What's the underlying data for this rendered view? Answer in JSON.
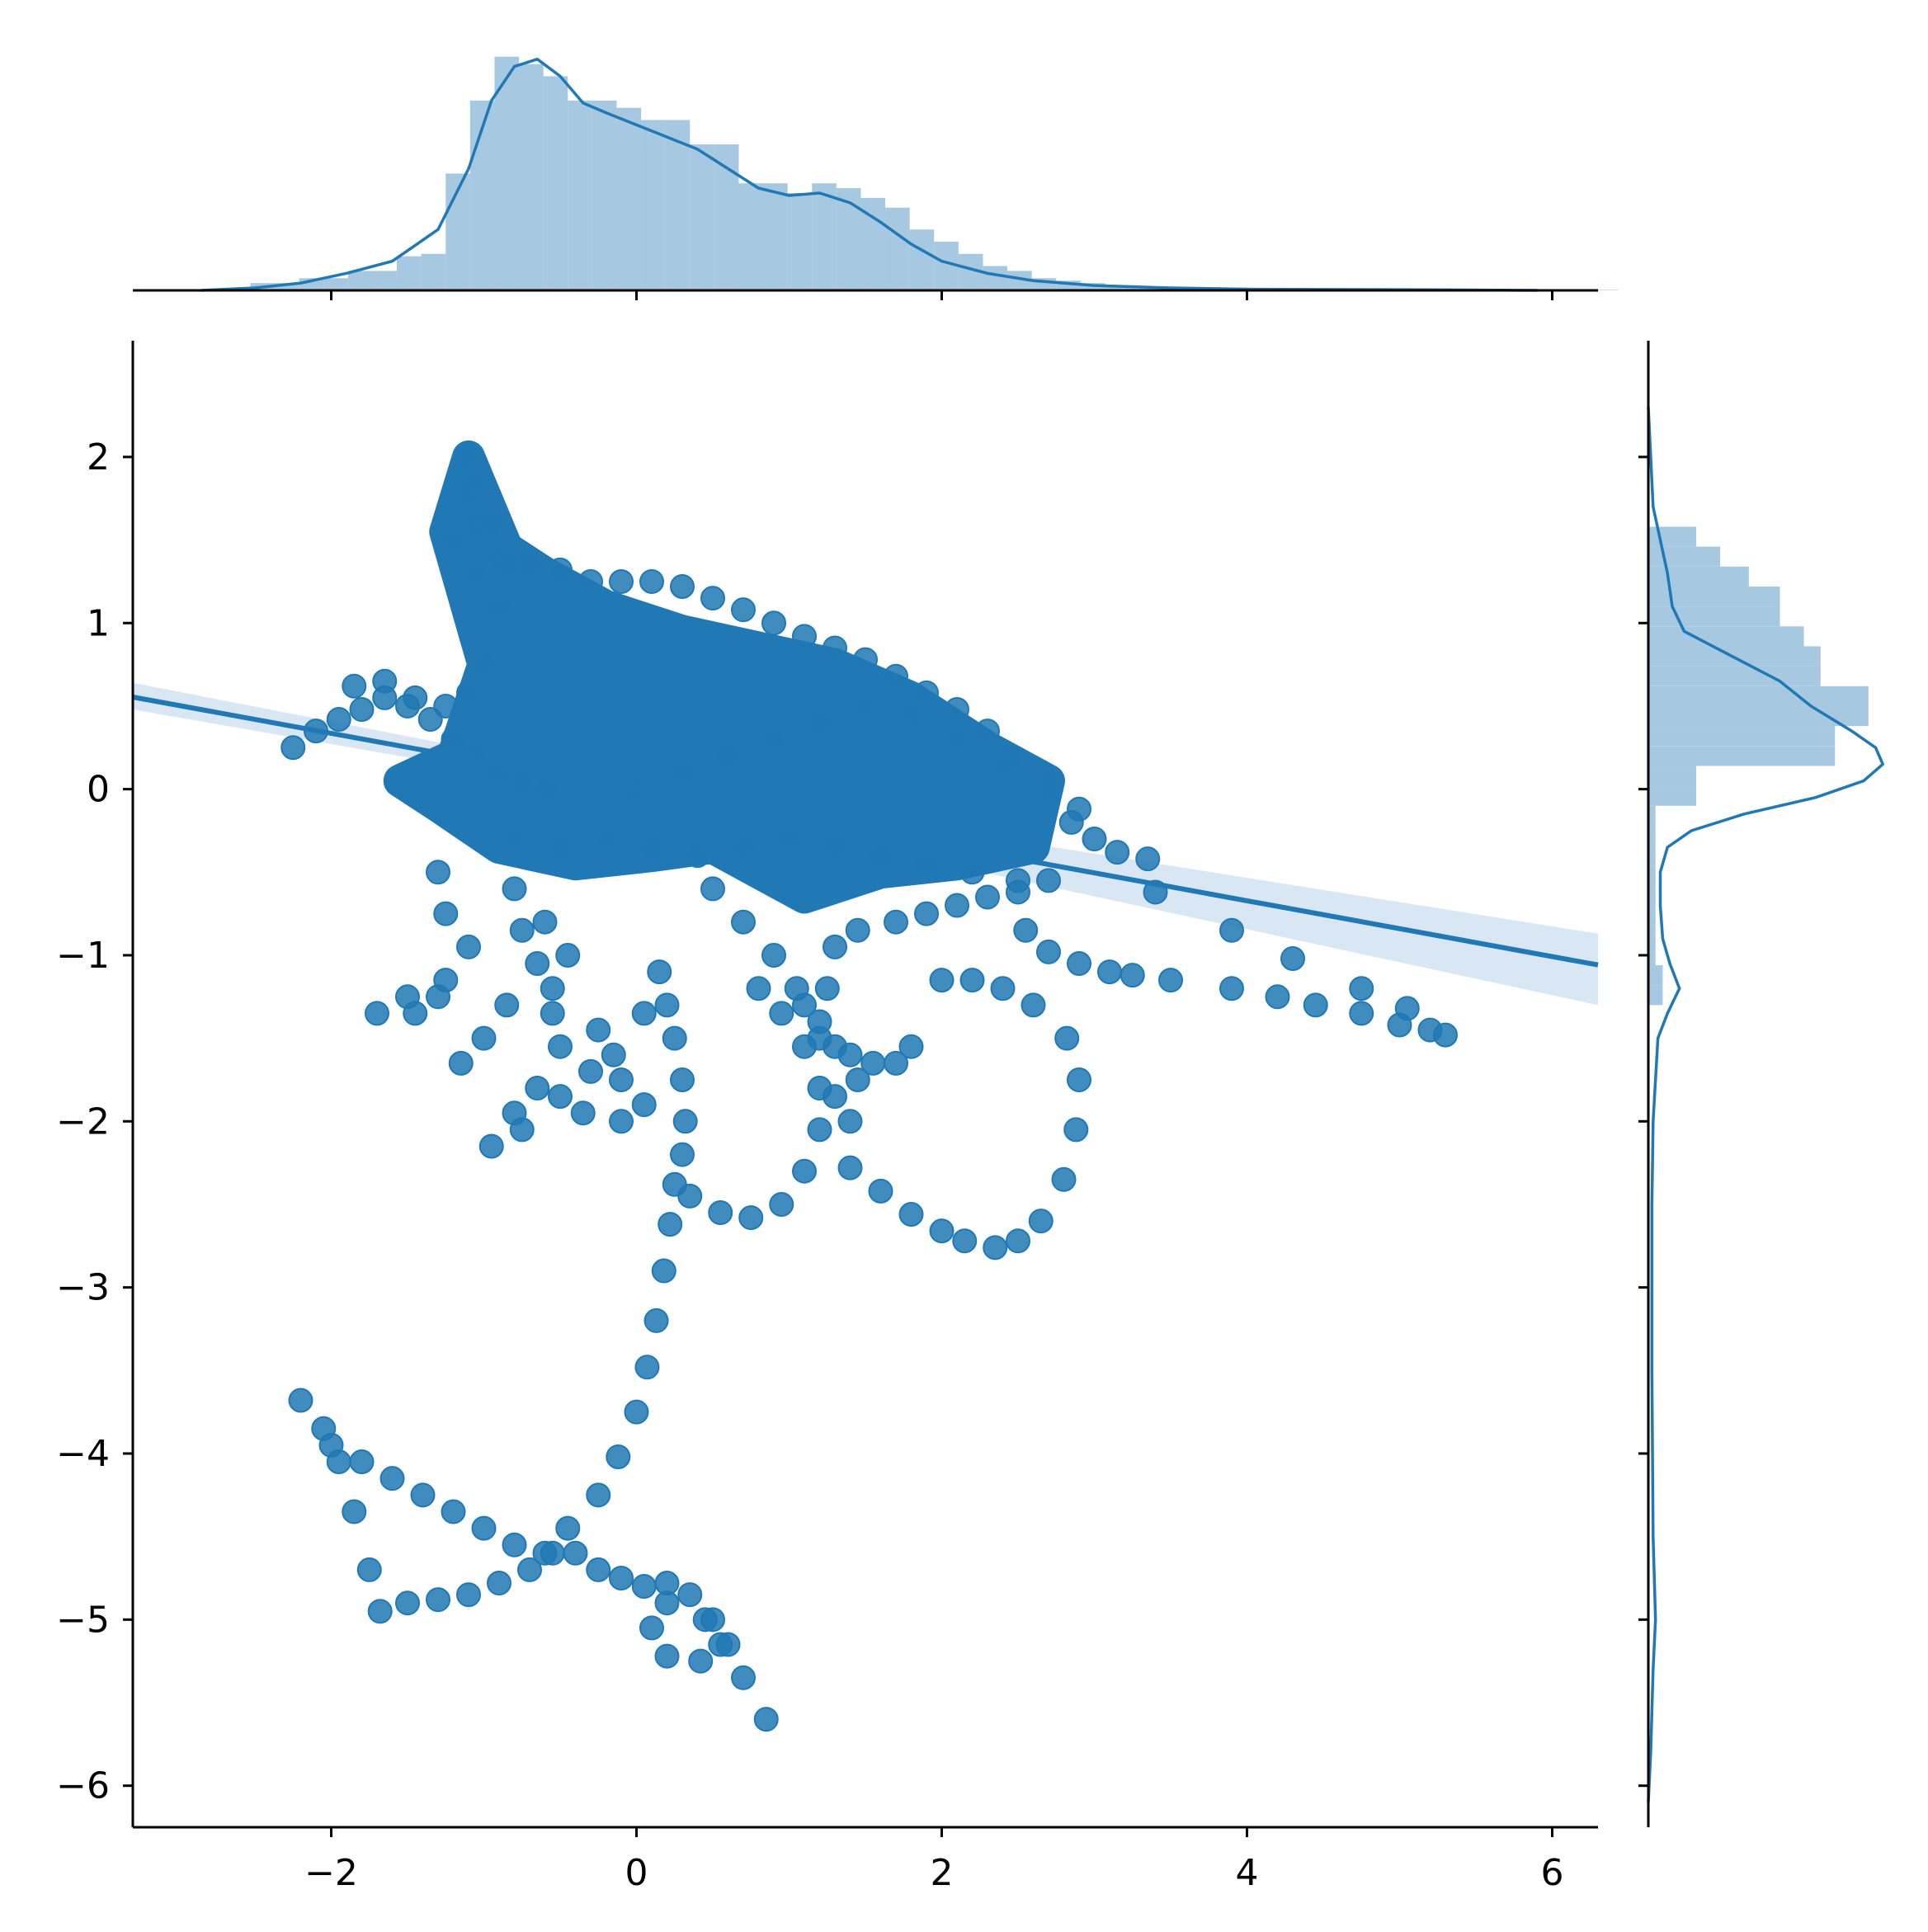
{
  "colors": {
    "main": "#2078b4",
    "hist_fill": "#a6c8e0",
    "band": "#c9dcee",
    "axis": "#000000"
  },
  "chart_data": {
    "type": "scatter",
    "kind": "jointplot with regression line and marginal histograms/kde",
    "title": "",
    "xlabel": "",
    "ylabel": "",
    "xlim": [
      -3.3,
      6.3
    ],
    "ylim": [
      -6.25,
      2.7
    ],
    "x_ticks": [
      "−2",
      "0",
      "2",
      "4",
      "6"
    ],
    "x_tick_values": [
      -2,
      0,
      2,
      4,
      6
    ],
    "y_ticks": [
      "2",
      "1",
      "0",
      "−1",
      "−2",
      "−3",
      "−4",
      "−5",
      "−6"
    ],
    "y_tick_values": [
      2,
      1,
      0,
      -1,
      -2,
      -3,
      -4,
      -5,
      -6
    ],
    "grid": false,
    "regression": {
      "slope": -0.168,
      "intercept": 0.0,
      "band": [
        [
          -3.3,
          0.64,
          0.48
        ],
        [
          0,
          0.05,
          -0.05
        ],
        [
          6.3,
          -0.87,
          -1.3
        ]
      ]
    },
    "trajectory_points": [
      [
        -2.2,
        -3.68
      ],
      [
        -2.05,
        -3.85
      ],
      [
        -1.95,
        -4.05
      ],
      [
        -1.85,
        -4.35
      ],
      [
        -1.75,
        -4.7
      ],
      [
        -1.68,
        -4.95
      ],
      [
        -1.5,
        -4.9
      ],
      [
        -1.3,
        -4.88
      ],
      [
        -1.1,
        -4.85
      ],
      [
        -0.9,
        -4.78
      ],
      [
        -0.7,
        -4.7
      ],
      [
        -0.55,
        -4.6
      ],
      [
        -0.4,
        -4.6
      ],
      [
        -0.25,
        -4.7
      ],
      [
        -0.1,
        -4.75
      ],
      [
        0.05,
        -4.8
      ],
      [
        0.2,
        -4.78
      ],
      [
        0.35,
        -4.85
      ],
      [
        0.5,
        -5.0
      ],
      [
        0.55,
        -5.15
      ],
      [
        0.42,
        -5.25
      ],
      [
        0.2,
        -5.22
      ],
      [
        0.1,
        -5.05
      ],
      [
        0.2,
        -4.9
      ],
      [
        0.45,
        -5.0
      ],
      [
        0.6,
        -5.15
      ],
      [
        0.7,
        -5.35
      ],
      [
        0.85,
        -5.6
      ],
      [
        -2.0,
        -3.95
      ],
      [
        -1.8,
        -4.05
      ],
      [
        -1.6,
        -4.15
      ],
      [
        -1.4,
        -4.25
      ],
      [
        -1.2,
        -4.35
      ],
      [
        -1.0,
        -4.45
      ],
      [
        -0.8,
        -4.55
      ],
      [
        -0.6,
        -4.6
      ],
      [
        -0.45,
        -4.45
      ],
      [
        -0.25,
        -4.25
      ],
      [
        -0.12,
        -4.02
      ],
      [
        0.0,
        -3.75
      ],
      [
        0.07,
        -3.48
      ],
      [
        0.13,
        -3.2
      ],
      [
        0.18,
        -2.9
      ],
      [
        0.22,
        -2.62
      ],
      [
        0.25,
        -2.38
      ],
      [
        0.3,
        -2.2
      ],
      [
        0.32,
        -2.0
      ],
      [
        0.3,
        -1.75
      ],
      [
        0.25,
        -1.5
      ],
      [
        0.2,
        -1.3
      ],
      [
        0.15,
        -1.1
      ],
      [
        0.35,
        -2.45
      ],
      [
        0.55,
        -2.55
      ],
      [
        0.75,
        -2.58
      ],
      [
        0.95,
        -2.5
      ],
      [
        1.1,
        -2.3
      ],
      [
        1.2,
        -2.05
      ],
      [
        1.2,
        -1.8
      ],
      [
        1.1,
        -1.55
      ],
      [
        0.95,
        -1.35
      ],
      [
        0.8,
        -1.2
      ],
      [
        1.4,
        -2.28
      ],
      [
        1.6,
        -2.42
      ],
      [
        1.8,
        -2.56
      ],
      [
        2.0,
        -2.66
      ],
      [
        2.15,
        -2.72
      ],
      [
        2.35,
        -2.76
      ],
      [
        2.5,
        -2.72
      ],
      [
        2.65,
        -2.6
      ],
      [
        2.8,
        -2.35
      ],
      [
        2.88,
        -2.05
      ],
      [
        2.9,
        -1.75
      ],
      [
        2.82,
        -1.5
      ],
      [
        2.6,
        -1.3
      ],
      [
        2.4,
        -1.2
      ],
      [
        2.2,
        -1.15
      ],
      [
        2.0,
        -1.15
      ],
      [
        1.8,
        -1.55
      ],
      [
        1.7,
        -1.65
      ],
      [
        1.55,
        -1.65
      ],
      [
        1.4,
        -1.6
      ],
      [
        1.2,
        -1.4
      ],
      [
        1.05,
        -1.2
      ],
      [
        -1.3,
        -0.5
      ],
      [
        -1.25,
        -0.75
      ],
      [
        -1.1,
        -0.95
      ],
      [
        -1.25,
        -1.15
      ],
      [
        -1.5,
        -1.25
      ],
      [
        -1.7,
        -1.35
      ],
      [
        -1.45,
        -1.35
      ],
      [
        -1.3,
        -1.25
      ],
      [
        -0.8,
        -0.6
      ],
      [
        -0.75,
        -0.85
      ],
      [
        -0.65,
        -1.05
      ],
      [
        -0.85,
        -1.3
      ],
      [
        -1.0,
        -1.5
      ],
      [
        -1.15,
        -1.65
      ],
      [
        -0.55,
        -1.2
      ],
      [
        -0.45,
        -1.0
      ],
      [
        -0.6,
        -0.8
      ],
      [
        -0.65,
        -1.8
      ],
      [
        -0.8,
        -1.95
      ],
      [
        -0.95,
        -2.15
      ],
      [
        -0.75,
        -2.05
      ],
      [
        -0.5,
        -1.85
      ],
      [
        -0.3,
        -1.7
      ],
      [
        -0.1,
        -1.75
      ],
      [
        0.05,
        -1.9
      ],
      [
        -0.1,
        -2.0
      ],
      [
        -0.35,
        -1.95
      ],
      [
        -0.15,
        -1.6
      ],
      [
        0.05,
        -1.35
      ],
      [
        -0.55,
        -1.35
      ],
      [
        -0.5,
        -1.55
      ],
      [
        -0.25,
        -1.45
      ],
      [
        0.5,
        -0.6
      ],
      [
        0.7,
        -0.8
      ],
      [
        0.9,
        -1.0
      ],
      [
        1.1,
        -1.3
      ],
      [
        1.3,
        -1.55
      ],
      [
        1.45,
        -1.75
      ],
      [
        1.4,
        -2.0
      ],
      [
        1.3,
        -1.85
      ],
      [
        1.2,
        -1.5
      ],
      [
        1.25,
        -1.2
      ],
      [
        1.3,
        -0.95
      ],
      [
        1.45,
        -0.85
      ],
      [
        1.7,
        -0.8
      ],
      [
        1.9,
        -0.75
      ],
      [
        2.1,
        -0.7
      ],
      [
        2.3,
        -0.65
      ],
      [
        2.5,
        -0.62
      ],
      [
        2.7,
        -0.55
      ],
      [
        2.55,
        -0.85
      ],
      [
        2.7,
        -0.98
      ],
      [
        2.9,
        -1.05
      ],
      [
        3.1,
        -1.1
      ],
      [
        3.25,
        -1.12
      ],
      [
        3.5,
        -1.15
      ],
      [
        3.9,
        -1.2
      ],
      [
        4.2,
        -1.25
      ],
      [
        4.45,
        -1.3
      ],
      [
        4.75,
        -1.35
      ],
      [
        5.0,
        -1.42
      ],
      [
        5.2,
        -1.45
      ],
      [
        5.3,
        -1.48
      ],
      [
        4.75,
        -1.2
      ],
      [
        5.05,
        -1.32
      ],
      [
        4.3,
        -1.02
      ],
      [
        3.9,
        -0.85
      ],
      [
        3.4,
        -0.62
      ],
      [
        3.35,
        -0.42
      ],
      [
        3.15,
        -0.38
      ],
      [
        3.0,
        -0.3
      ],
      [
        2.85,
        -0.2
      ],
      [
        2.9,
        -0.12
      ],
      [
        2.7,
        0.0
      ],
      [
        2.45,
        0.2
      ],
      [
        2.3,
        0.35
      ],
      [
        2.1,
        0.48
      ],
      [
        1.9,
        0.58
      ],
      [
        1.7,
        0.68
      ],
      [
        1.5,
        0.78
      ],
      [
        1.3,
        0.85
      ],
      [
        1.1,
        0.92
      ],
      [
        0.9,
        1.0
      ],
      [
        0.7,
        1.08
      ],
      [
        0.5,
        1.15
      ],
      [
        0.3,
        1.22
      ],
      [
        0.1,
        1.25
      ],
      [
        -0.1,
        1.25
      ],
      [
        -0.3,
        1.25
      ],
      [
        -0.5,
        1.32
      ],
      [
        -0.7,
        1.35
      ],
      [
        -0.9,
        1.4
      ],
      [
        -1.05,
        1.6
      ],
      [
        -1.1,
        1.8
      ],
      [
        -1.1,
        2.0
      ],
      [
        -1.05,
        1.85
      ],
      [
        -0.95,
        1.6
      ],
      [
        -0.85,
        1.35
      ],
      [
        -1.2,
        1.5
      ],
      [
        -1.05,
        1.3
      ],
      [
        -0.9,
        1.1
      ],
      [
        -2.25,
        0.25
      ],
      [
        -2.1,
        0.35
      ],
      [
        -1.95,
        0.42
      ],
      [
        -1.8,
        0.48
      ],
      [
        -1.65,
        0.55
      ],
      [
        -1.5,
        0.5
      ],
      [
        -1.35,
        0.42
      ],
      [
        -1.2,
        0.3
      ],
      [
        -1.05,
        0.2
      ],
      [
        -0.9,
        0.1
      ],
      [
        -0.75,
        0.05
      ],
      [
        -0.6,
        0.0
      ],
      [
        -1.85,
        0.62
      ],
      [
        -1.65,
        0.65
      ],
      [
        -1.45,
        0.55
      ],
      [
        -1.25,
        0.5
      ],
      [
        -1.1,
        0.58
      ],
      [
        -1.0,
        0.75
      ],
      [
        0.0,
        0.0
      ],
      [
        0.3,
        0.1
      ],
      [
        0.6,
        0.2
      ],
      [
        0.9,
        0.3
      ],
      [
        1.2,
        0.4
      ],
      [
        1.5,
        0.5
      ],
      [
        1.8,
        0.45
      ],
      [
        2.1,
        0.3
      ],
      [
        2.4,
        0.15
      ],
      [
        2.7,
        0.05
      ],
      [
        -0.8,
        -0.3
      ],
      [
        -0.5,
        -0.35
      ],
      [
        -0.2,
        -0.3
      ],
      [
        0.1,
        -0.35
      ],
      [
        0.4,
        -0.4
      ],
      [
        0.7,
        -0.35
      ],
      [
        1.0,
        -0.3
      ],
      [
        1.3,
        -0.35
      ],
      [
        1.6,
        -0.4
      ],
      [
        1.9,
        -0.45
      ],
      [
        2.2,
        -0.5
      ],
      [
        2.5,
        -0.55
      ]
    ],
    "dense_core_hull": [
      [
        -1.2,
        0.2
      ],
      [
        -1.0,
        0.75
      ],
      [
        -1.25,
        1.55
      ],
      [
        -1.1,
        2.0
      ],
      [
        -0.85,
        1.45
      ],
      [
        -0.6,
        1.3
      ],
      [
        -0.2,
        1.1
      ],
      [
        0.3,
        0.95
      ],
      [
        0.8,
        0.85
      ],
      [
        1.3,
        0.75
      ],
      [
        1.8,
        0.55
      ],
      [
        2.3,
        0.25
      ],
      [
        2.7,
        0.05
      ],
      [
        2.6,
        -0.35
      ],
      [
        2.1,
        -0.45
      ],
      [
        1.6,
        -0.5
      ],
      [
        1.1,
        -0.65
      ],
      [
        0.8,
        -0.5
      ],
      [
        0.5,
        -0.35
      ],
      [
        0.1,
        -0.4
      ],
      [
        -0.4,
        -0.45
      ],
      [
        -0.9,
        -0.35
      ],
      [
        -1.3,
        -0.1
      ],
      [
        -1.55,
        0.05
      ]
    ],
    "x_marginal": {
      "bins_start": -2.85,
      "bin_width": 0.16,
      "heights": [
        0.003,
        0.01,
        0.03,
        0.03,
        0.05,
        0.05,
        0.08,
        0.08,
        0.14,
        0.15,
        0.48,
        0.78,
        0.96,
        0.93,
        0.88,
        0.78,
        0.78,
        0.75,
        0.7,
        0.7,
        0.6,
        0.6,
        0.44,
        0.44,
        0.4,
        0.44,
        0.42,
        0.38,
        0.34,
        0.25,
        0.2,
        0.15,
        0.1,
        0.08,
        0.05,
        0.04,
        0.03,
        0.02,
        0.01,
        0.01,
        0.008,
        0.006,
        0.005,
        0.004,
        0.004,
        0.003,
        0.003,
        0.003,
        0.003,
        0.003,
        0.003,
        0.003,
        0.003,
        0.003,
        0.002,
        0.002,
        0.002,
        0.002
      ],
      "kde": [
        [
          -2.85,
          0.0
        ],
        [
          -2.5,
          0.01
        ],
        [
          -2.2,
          0.03
        ],
        [
          -1.9,
          0.07
        ],
        [
          -1.6,
          0.12
        ],
        [
          -1.3,
          0.25
        ],
        [
          -1.1,
          0.5
        ],
        [
          -0.95,
          0.78
        ],
        [
          -0.8,
          0.92
        ],
        [
          -0.65,
          0.95
        ],
        [
          -0.5,
          0.88
        ],
        [
          -0.35,
          0.77
        ],
        [
          -0.2,
          0.73
        ],
        [
          0.0,
          0.68
        ],
        [
          0.2,
          0.63
        ],
        [
          0.4,
          0.58
        ],
        [
          0.6,
          0.5
        ],
        [
          0.8,
          0.42
        ],
        [
          1.0,
          0.39
        ],
        [
          1.2,
          0.4
        ],
        [
          1.4,
          0.36
        ],
        [
          1.6,
          0.28
        ],
        [
          1.8,
          0.19
        ],
        [
          2.0,
          0.12
        ],
        [
          2.3,
          0.07
        ],
        [
          2.6,
          0.04
        ],
        [
          3.0,
          0.02
        ],
        [
          3.5,
          0.01
        ],
        [
          4.0,
          0.005
        ],
        [
          5.0,
          0.003
        ],
        [
          5.9,
          0.0
        ]
      ]
    },
    "y_marginal": {
      "kde": [
        [
          2.3,
          0.0
        ],
        [
          2.0,
          0.01
        ],
        [
          1.7,
          0.02
        ],
        [
          1.5,
          0.05
        ],
        [
          1.3,
          0.08
        ],
        [
          1.1,
          0.1
        ],
        [
          0.95,
          0.15
        ],
        [
          0.8,
          0.35
        ],
        [
          0.65,
          0.55
        ],
        [
          0.5,
          0.68
        ],
        [
          0.35,
          0.85
        ],
        [
          0.25,
          0.95
        ],
        [
          0.15,
          0.98
        ],
        [
          0.05,
          0.9
        ],
        [
          -0.05,
          0.7
        ],
        [
          -0.15,
          0.4
        ],
        [
          -0.25,
          0.18
        ],
        [
          -0.35,
          0.08
        ],
        [
          -0.5,
          0.05
        ],
        [
          -0.7,
          0.05
        ],
        [
          -0.9,
          0.06
        ],
        [
          -1.05,
          0.09
        ],
        [
          -1.2,
          0.13
        ],
        [
          -1.35,
          0.08
        ],
        [
          -1.5,
          0.04
        ],
        [
          -2.0,
          0.02
        ],
        [
          -2.5,
          0.015
        ],
        [
          -3.5,
          0.015
        ],
        [
          -4.5,
          0.02
        ],
        [
          -5.0,
          0.03
        ],
        [
          -5.3,
          0.02
        ],
        [
          -5.8,
          0.01
        ],
        [
          -6.1,
          0.0
        ]
      ],
      "bins_start": -1.3,
      "bin_width": 0.12,
      "heights": [
        0.06,
        0.06,
        0.03,
        0.03,
        0.03,
        0.03,
        0.03,
        0.03,
        0.03,
        0.03,
        0.2,
        0.2,
        0.78,
        0.78,
        0.92,
        0.92,
        0.72,
        0.72,
        0.65,
        0.55,
        0.55,
        0.42,
        0.3,
        0.2
      ]
    }
  }
}
